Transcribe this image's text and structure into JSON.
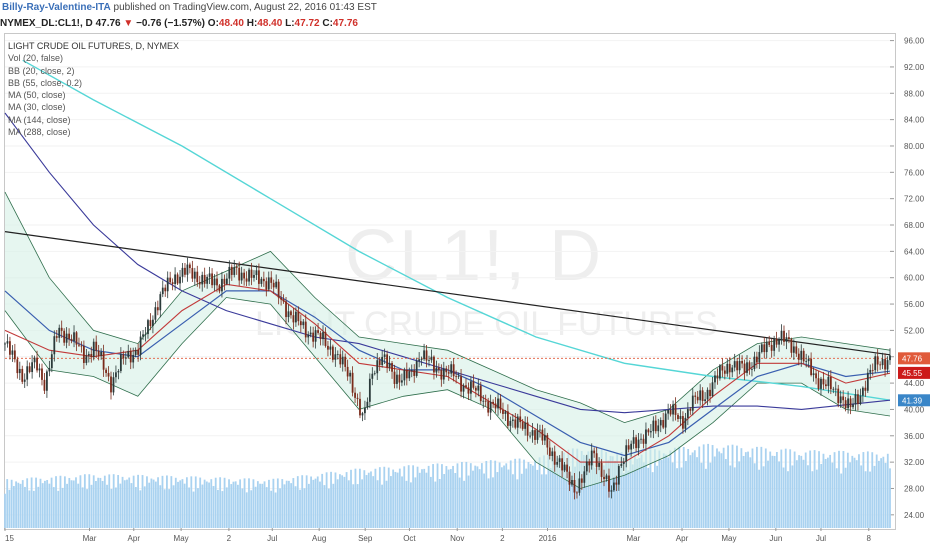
{
  "header": {
    "author": "Billy-Ray-Valentine-ITA",
    "published_text": "published on TradingView.com, August 22, 2016 01:43 EST"
  },
  "ticker": {
    "symbol": "NYMEX_DL:CL1!, D",
    "last": "47.76",
    "change_arrow": "▼",
    "change": "−0.76 (−1.57%)",
    "open_label": "O:",
    "open": "48.40",
    "high_label": "H:",
    "high": "48.40",
    "low_label": "L:",
    "low": "47.72",
    "close_label": "C:",
    "close": "47.76"
  },
  "legend": {
    "title": "LIGHT CRUDE OIL FUTURES, D, NYMEX",
    "items": [
      "Vol (20, false)",
      "BB (20, close, 2)",
      "BB (55, close, 0.2)",
      "MA (50, close)",
      "MA (30, close)",
      "MA (144, close)",
      "MA (288, close)"
    ]
  },
  "watermark": {
    "symbol": "CL1!, D",
    "name": "LIGHT CRUDE OIL FUTURES"
  },
  "colors": {
    "up": "#2b3a3a",
    "down": "#7a2a1a",
    "volume": "#a9d2f0",
    "ma288": "#55d6d6",
    "ma144": "#3a3a9a",
    "bb_fill": "#d6f0e6",
    "trendline": "#222222",
    "price_label": "#e05a3a",
    "ma_label_red": "#cc1a1a",
    "ma_label_blue": "#3a86c8"
  },
  "chart_data": {
    "type": "candlestick",
    "title": "LIGHT CRUDE OIL FUTURES, D, NYMEX",
    "ylim": [
      22,
      97
    ],
    "y_ticks": [
      "96.00",
      "92.00",
      "88.00",
      "84.00",
      "80.00",
      "76.00",
      "72.00",
      "68.00",
      "64.00",
      "60.00",
      "56.00",
      "52.00",
      "48.00",
      "44.00",
      "40.00",
      "36.00",
      "32.00",
      "28.00",
      "24.00"
    ],
    "x_ticks": [
      {
        "label": "15",
        "t": 0
      },
      {
        "label": "Mar",
        "t": 0.0955
      },
      {
        "label": "Apr",
        "t": 0.1455
      },
      {
        "label": "May",
        "t": 0.199
      },
      {
        "label": "2",
        "t": 0.253
      },
      {
        "label": "Jul",
        "t": 0.302
      },
      {
        "label": "Aug",
        "t": 0.355
      },
      {
        "label": "Sep",
        "t": 0.407
      },
      {
        "label": "Oct",
        "t": 0.457
      },
      {
        "label": "Nov",
        "t": 0.511
      },
      {
        "label": "2",
        "t": 0.562
      },
      {
        "label": "2016",
        "t": 0.613
      },
      {
        "label": "Mar",
        "t": 0.71
      },
      {
        "label": "Apr",
        "t": 0.765
      },
      {
        "label": "May",
        "t": 0.818
      },
      {
        "label": "Jun",
        "t": 0.871
      },
      {
        "label": "Jul",
        "t": 0.922
      },
      {
        "label": "8",
        "t": 0.976
      }
    ],
    "price_path": [
      [
        0,
        50
      ],
      [
        0.01,
        47.5
      ],
      [
        0.02,
        45
      ],
      [
        0.035,
        47
      ],
      [
        0.045,
        44
      ],
      [
        0.06,
        52
      ],
      [
        0.075,
        51
      ],
      [
        0.09,
        48
      ],
      [
        0.1,
        49.5
      ],
      [
        0.11,
        47
      ],
      [
        0.12,
        44
      ],
      [
        0.135,
        48
      ],
      [
        0.15,
        49
      ],
      [
        0.16,
        52
      ],
      [
        0.175,
        57
      ],
      [
        0.19,
        60
      ],
      [
        0.205,
        61
      ],
      [
        0.22,
        60
      ],
      [
        0.24,
        59
      ],
      [
        0.26,
        61
      ],
      [
        0.28,
        60
      ],
      [
        0.3,
        59.5
      ],
      [
        0.31,
        57
      ],
      [
        0.325,
        54
      ],
      [
        0.34,
        52
      ],
      [
        0.355,
        51
      ],
      [
        0.37,
        49
      ],
      [
        0.39,
        45
      ],
      [
        0.405,
        38
      ],
      [
        0.415,
        46
      ],
      [
        0.425,
        48
      ],
      [
        0.44,
        45
      ],
      [
        0.46,
        45
      ],
      [
        0.47,
        49
      ],
      [
        0.485,
        46
      ],
      [
        0.5,
        46
      ],
      [
        0.515,
        44
      ],
      [
        0.53,
        43
      ],
      [
        0.545,
        41
      ],
      [
        0.56,
        40
      ],
      [
        0.575,
        38
      ],
      [
        0.59,
        37
      ],
      [
        0.605,
        36
      ],
      [
        0.62,
        33
      ],
      [
        0.635,
        30
      ],
      [
        0.645,
        28
      ],
      [
        0.655,
        30
      ],
      [
        0.665,
        34
      ],
      [
        0.675,
        30
      ],
      [
        0.685,
        27
      ],
      [
        0.695,
        32
      ],
      [
        0.705,
        34
      ],
      [
        0.72,
        36
      ],
      [
        0.735,
        37
      ],
      [
        0.75,
        40
      ],
      [
        0.765,
        38
      ],
      [
        0.775,
        41
      ],
      [
        0.79,
        42
      ],
      [
        0.805,
        45
      ],
      [
        0.82,
        47
      ],
      [
        0.835,
        46
      ],
      [
        0.85,
        48
      ],
      [
        0.865,
        50
      ],
      [
        0.875,
        51
      ],
      [
        0.885,
        50
      ],
      [
        0.895,
        49
      ],
      [
        0.905,
        47
      ],
      [
        0.915,
        45
      ],
      [
        0.925,
        44
      ],
      [
        0.935,
        43
      ],
      [
        0.945,
        42
      ],
      [
        0.955,
        40
      ],
      [
        0.965,
        42
      ],
      [
        0.975,
        45
      ],
      [
        0.985,
        47
      ],
      [
        1,
        47.76
      ]
    ],
    "trendline": [
      [
        0,
        67
      ],
      [
        1,
        48.3
      ]
    ],
    "ma288": [
      [
        0.02,
        93
      ],
      [
        0.1,
        87
      ],
      [
        0.2,
        80
      ],
      [
        0.3,
        72
      ],
      [
        0.4,
        64
      ],
      [
        0.5,
        57
      ],
      [
        0.6,
        51
      ],
      [
        0.7,
        47
      ],
      [
        0.8,
        45
      ],
      [
        0.9,
        43.5
      ],
      [
        1,
        41.4
      ]
    ],
    "ma144": [
      [
        0,
        85
      ],
      [
        0.05,
        76
      ],
      [
        0.1,
        68
      ],
      [
        0.15,
        62
      ],
      [
        0.2,
        58
      ],
      [
        0.25,
        55
      ],
      [
        0.3,
        53
      ],
      [
        0.35,
        51
      ],
      [
        0.4,
        50
      ],
      [
        0.45,
        48
      ],
      [
        0.5,
        46
      ],
      [
        0.55,
        44
      ],
      [
        0.6,
        42
      ],
      [
        0.65,
        40
      ],
      [
        0.7,
        39.5
      ],
      [
        0.75,
        40
      ],
      [
        0.8,
        40.5
      ],
      [
        0.85,
        40.5
      ],
      [
        0.9,
        40
      ],
      [
        1,
        41.4
      ]
    ],
    "bb_upper": [
      [
        0,
        73
      ],
      [
        0.05,
        60
      ],
      [
        0.1,
        52
      ],
      [
        0.15,
        50
      ],
      [
        0.2,
        58
      ],
      [
        0.25,
        61
      ],
      [
        0.3,
        64
      ],
      [
        0.35,
        57
      ],
      [
        0.4,
        51
      ],
      [
        0.45,
        50
      ],
      [
        0.5,
        49
      ],
      [
        0.55,
        46
      ],
      [
        0.6,
        43
      ],
      [
        0.65,
        41
      ],
      [
        0.7,
        38
      ],
      [
        0.75,
        40
      ],
      [
        0.8,
        46
      ],
      [
        0.85,
        50
      ],
      [
        0.9,
        51
      ],
      [
        0.95,
        50
      ],
      [
        1,
        49
      ]
    ],
    "bb_lower": [
      [
        0,
        55
      ],
      [
        0.05,
        46
      ],
      [
        0.1,
        45
      ],
      [
        0.15,
        42
      ],
      [
        0.2,
        50
      ],
      [
        0.25,
        57
      ],
      [
        0.3,
        56
      ],
      [
        0.35,
        48
      ],
      [
        0.4,
        40
      ],
      [
        0.45,
        42
      ],
      [
        0.5,
        43
      ],
      [
        0.55,
        40
      ],
      [
        0.6,
        32
      ],
      [
        0.65,
        28
      ],
      [
        0.7,
        30
      ],
      [
        0.75,
        33
      ],
      [
        0.8,
        38
      ],
      [
        0.85,
        44
      ],
      [
        0.9,
        44
      ],
      [
        0.95,
        40
      ],
      [
        1,
        39
      ]
    ],
    "ma_red": [
      [
        0,
        52
      ],
      [
        0.05,
        49
      ],
      [
        0.1,
        48
      ],
      [
        0.15,
        49
      ],
      [
        0.2,
        55
      ],
      [
        0.25,
        59
      ],
      [
        0.3,
        58
      ],
      [
        0.35,
        53
      ],
      [
        0.4,
        47
      ],
      [
        0.45,
        46
      ],
      [
        0.5,
        45
      ],
      [
        0.55,
        41
      ],
      [
        0.6,
        37
      ],
      [
        0.65,
        32
      ],
      [
        0.7,
        32
      ],
      [
        0.75,
        36
      ],
      [
        0.8,
        42
      ],
      [
        0.85,
        47
      ],
      [
        0.9,
        47
      ],
      [
        0.95,
        44
      ],
      [
        1,
        45.5
      ]
    ],
    "ma_blue": [
      [
        0,
        58
      ],
      [
        0.05,
        52
      ],
      [
        0.1,
        49
      ],
      [
        0.15,
        48
      ],
      [
        0.2,
        53
      ],
      [
        0.25,
        58
      ],
      [
        0.3,
        58
      ],
      [
        0.35,
        54
      ],
      [
        0.4,
        49
      ],
      [
        0.45,
        46
      ],
      [
        0.5,
        46
      ],
      [
        0.55,
        43
      ],
      [
        0.6,
        39
      ],
      [
        0.65,
        35
      ],
      [
        0.7,
        33
      ],
      [
        0.75,
        35
      ],
      [
        0.8,
        40
      ],
      [
        0.85,
        45
      ],
      [
        0.9,
        47
      ],
      [
        0.95,
        45
      ],
      [
        1,
        45.8
      ]
    ],
    "volume_level": [
      [
        0,
        0.45
      ],
      [
        0.1,
        0.5
      ],
      [
        0.2,
        0.48
      ],
      [
        0.3,
        0.45
      ],
      [
        0.4,
        0.55
      ],
      [
        0.5,
        0.6
      ],
      [
        0.6,
        0.65
      ],
      [
        0.65,
        0.75
      ],
      [
        0.7,
        0.7
      ],
      [
        0.8,
        0.78
      ],
      [
        0.9,
        0.72
      ],
      [
        1,
        0.7
      ]
    ],
    "price_labels": [
      {
        "value": "47.76",
        "y": 47.76,
        "color": "#e05a3a"
      },
      {
        "value": "45.55",
        "y": 45.55,
        "color": "#cc1a1a"
      },
      {
        "value": "41.39",
        "y": 41.39,
        "color": "#3a86c8"
      }
    ],
    "last_price": 47.76
  }
}
